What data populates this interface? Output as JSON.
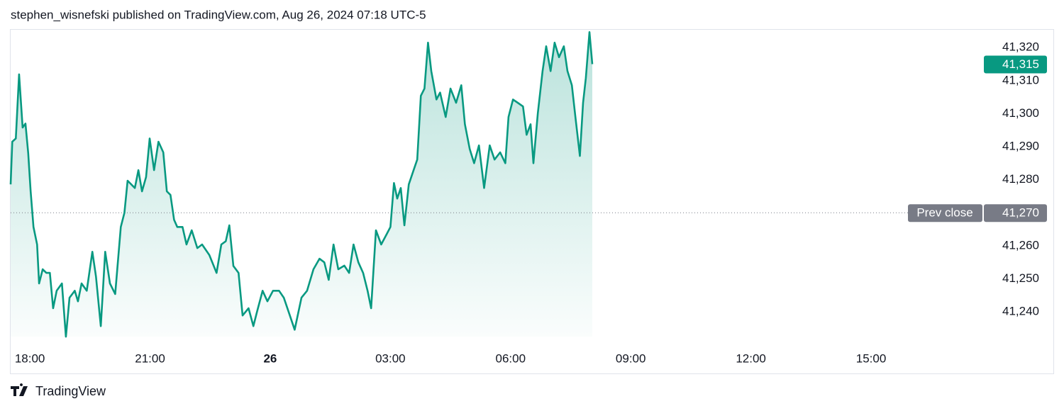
{
  "header": {
    "text": "stephen_wisnefski published on TradingView.com, Aug 26, 2024 07:18 UTC-5"
  },
  "footer": {
    "brand": "TradingView"
  },
  "chart_data": {
    "type": "area-line",
    "color": "#089981",
    "x": [
      -0.48,
      -0.44,
      -0.35,
      -0.27,
      -0.18,
      -0.11,
      -0.04,
      0.02,
      0.09,
      0.18,
      0.23,
      0.32,
      0.41,
      0.5,
      0.58,
      0.67,
      0.8,
      0.9,
      0.99,
      1.12,
      1.2,
      1.29,
      1.42,
      1.56,
      1.65,
      1.77,
      1.88,
      2.0,
      2.13,
      2.27,
      2.36,
      2.44,
      2.62,
      2.71,
      2.8,
      2.9,
      2.99,
      3.1,
      3.21,
      3.33,
      3.42,
      3.51,
      3.6,
      3.68,
      3.81,
      3.91,
      4.04,
      4.18,
      4.3,
      4.48,
      4.66,
      4.78,
      4.89,
      4.98,
      5.08,
      5.21,
      5.31,
      5.46,
      5.58,
      5.67,
      5.81,
      5.93,
      6.07,
      6.22,
      6.34,
      6.46,
      6.61,
      6.78,
      6.92,
      7.08,
      7.23,
      7.35,
      7.46,
      7.58,
      7.7,
      7.85,
      7.97,
      8.08,
      8.2,
      8.32,
      8.43,
      8.52,
      8.64,
      8.77,
      8.91,
      9.0,
      9.09,
      9.17,
      9.26,
      9.35,
      9.46,
      9.58,
      9.67,
      9.76,
      9.85,
      9.94,
      10.02,
      10.15,
      10.24,
      10.38,
      10.5,
      10.64,
      10.77,
      10.86,
      10.98,
      11.09,
      11.21,
      11.34,
      11.48,
      11.6,
      11.74,
      11.87,
      11.95,
      12.06,
      12.18,
      12.31,
      12.4,
      12.5,
      12.57,
      12.68,
      12.8,
      12.89,
      13.0,
      13.1,
      13.21,
      13.33,
      13.42,
      13.53,
      13.62,
      13.73,
      13.81,
      13.88,
      13.97,
      14.04
    ],
    "values": [
      41278.6,
      41291.5,
      41292.5,
      41311.9,
      41295.8,
      41297,
      41288,
      41276.5,
      41265.7,
      41260.4,
      41248.6,
      41252.9,
      41251.8,
      41251.8,
      41241.1,
      41246.4,
      41248.6,
      41232.5,
      41244.3,
      41246.4,
      41243.2,
      41248.6,
      41246.4,
      41258.2,
      41250.7,
      41235.7,
      41258.2,
      41248.6,
      41245.4,
      41265.7,
      41270,
      41279.7,
      41277.5,
      41282.9,
      41276.5,
      41280.8,
      41292.5,
      41282.9,
      41291.5,
      41288.3,
      41276.5,
      41275.4,
      41267.9,
      41265.7,
      41265.7,
      41260.4,
      41264.7,
      41259.3,
      41260.4,
      41257.2,
      41251.8,
      41260.4,
      41261.4,
      41266.2,
      41253.9,
      41251.8,
      41238.9,
      41241.1,
      41235.7,
      41240,
      41246.4,
      41243.2,
      41246.4,
      41246.4,
      41244.3,
      41240,
      41234.6,
      41244.3,
      41246.4,
      41252.9,
      41256.1,
      41255,
      41249.7,
      41260.4,
      41252.9,
      41254,
      41251.8,
      41260.4,
      41255,
      41251.8,
      41246.4,
      41241.1,
      41264.7,
      41260.4,
      41263.6,
      41265.7,
      41279,
      41274.3,
      41277.5,
      41266.2,
      41278.6,
      41282.9,
      41286.1,
      41305.4,
      41307.6,
      41321.5,
      41312.9,
      41304.3,
      41306.4,
      41299,
      41307.6,
      41303.3,
      41308.6,
      41296.8,
      41289.3,
      41285,
      41290.4,
      41277.5,
      41290.4,
      41286.1,
      41288.3,
      41285,
      41299,
      41304.3,
      41303.3,
      41302.2,
      41293.6,
      41296.8,
      41285,
      41300.1,
      41312.9,
      41320.4,
      41312.9,
      41321.5,
      41317.1,
      41320.4,
      41312.9,
      41308.6,
      41299,
      41287.2,
      41303.3,
      41310.8,
      41324.7,
      41315
    ],
    "xlim": [
      -0.48,
      23.78
    ],
    "xticks": [
      {
        "value": 0,
        "label": "18:00"
      },
      {
        "value": 3,
        "label": "21:00"
      },
      {
        "value": 6,
        "label": "26"
      },
      {
        "value": 9,
        "label": "03:00"
      },
      {
        "value": 12,
        "label": "06:00"
      },
      {
        "value": 15,
        "label": "09:00"
      },
      {
        "value": 18,
        "label": "12:00"
      },
      {
        "value": 21,
        "label": "15:00"
      }
    ],
    "ylim": [
      41229.3,
      41325.4
    ],
    "yticks": [
      {
        "value": 41240,
        "label": "41,240"
      },
      {
        "value": 41250,
        "label": "41,250"
      },
      {
        "value": 41260,
        "label": "41,260"
      },
      {
        "value": 41270,
        "label": "41,270"
      },
      {
        "value": 41280,
        "label": "41,280"
      },
      {
        "value": 41290,
        "label": "41,290"
      },
      {
        "value": 41300,
        "label": "41,300"
      },
      {
        "value": 41310,
        "label": "41,310"
      },
      {
        "value": 41320,
        "label": "41,320"
      }
    ],
    "last_price": {
      "value": 41315,
      "label": "41,315"
    },
    "prev_close": {
      "name": "Prev close",
      "value": 41270,
      "label": "41,270",
      "color": "#787b86"
    }
  }
}
